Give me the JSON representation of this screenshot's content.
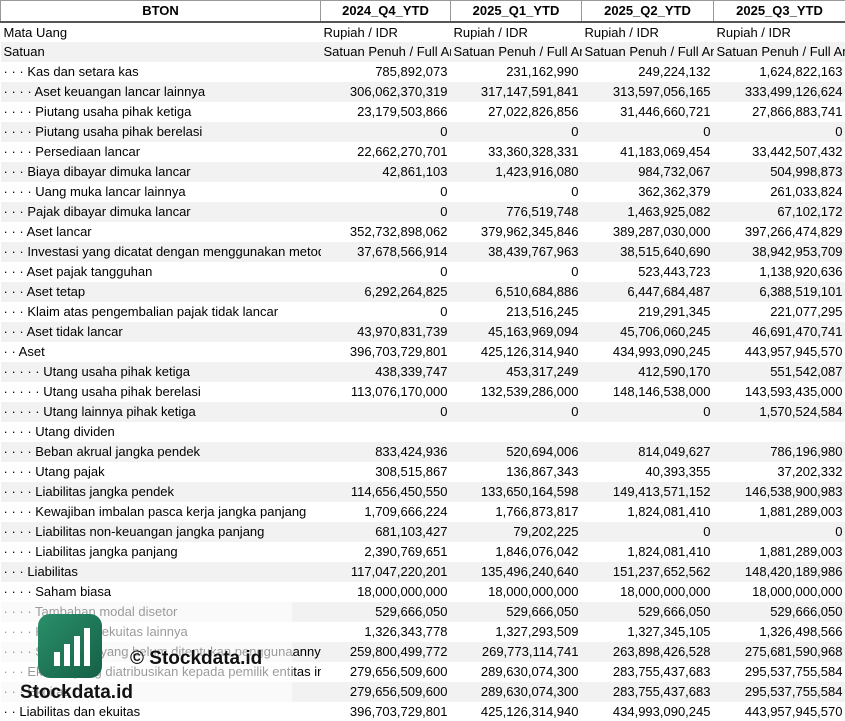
{
  "table": {
    "header": [
      "BTON",
      "2024_Q4_YTD",
      "2025_Q1_YTD",
      "2025_Q2_YTD",
      "2025_Q3_YTD"
    ],
    "rows": [
      [
        "Mata Uang",
        "Rupiah / IDR",
        "Rupiah / IDR",
        "Rupiah / IDR",
        "Rupiah / IDR"
      ],
      [
        "Satuan",
        "Satuan Penuh / Full Amount",
        "Satuan Penuh / Full Amount",
        "Satuan Penuh / Full Amount",
        "Satuan Penuh / Full Amount"
      ],
      [
        "· · · Kas dan setara kas",
        "785,892,073",
        "231,162,990",
        "249,224,132",
        "1,624,822,163"
      ],
      [
        "· · · · Aset keuangan lancar lainnya",
        "306,062,370,319",
        "317,147,591,841",
        "313,597,056,165",
        "333,499,126,624"
      ],
      [
        "· · · · Piutang usaha pihak ketiga",
        "23,179,503,866",
        "27,022,826,856",
        "31,446,660,721",
        "27,866,883,741"
      ],
      [
        "· · · · Piutang usaha pihak berelasi",
        "0",
        "0",
        "0",
        "0"
      ],
      [
        "· · · · Persediaan lancar",
        "22,662,270,701",
        "33,360,328,331",
        "41,183,069,454",
        "33,442,507,432"
      ],
      [
        "· · · Biaya dibayar dimuka lancar",
        "42,861,103",
        "1,423,916,080",
        "984,732,067",
        "504,998,873"
      ],
      [
        "· · · · Uang muka lancar lainnya",
        "0",
        "0",
        "362,362,379",
        "261,033,824"
      ],
      [
        "· · · Pajak dibayar dimuka lancar",
        "0",
        "776,519,748",
        "1,463,925,082",
        "67,102,172"
      ],
      [
        "· · · Aset lancar",
        "352,732,898,062",
        "379,962,345,846",
        "389,287,030,000",
        "397,266,474,829"
      ],
      [
        "· · · Investasi yang dicatat dengan menggunakan metode ekuitas",
        "37,678,566,914",
        "38,439,767,963",
        "38,515,640,690",
        "38,942,953,709"
      ],
      [
        "· · · Aset pajak tangguhan",
        "0",
        "0",
        "523,443,723",
        "1,138,920,636"
      ],
      [
        "· · · Aset tetap",
        "6,292,264,825",
        "6,510,684,886",
        "6,447,684,487",
        "6,388,519,101"
      ],
      [
        "· · · Klaim atas pengembalian pajak tidak lancar",
        "0",
        "213,516,245",
        "219,291,345",
        "221,077,295"
      ],
      [
        "· · · Aset tidak lancar",
        "43,970,831,739",
        "45,163,969,094",
        "45,706,060,245",
        "46,691,470,741"
      ],
      [
        "· · Aset",
        "396,703,729,801",
        "425,126,314,940",
        "434,993,090,245",
        "443,957,945,570"
      ],
      [
        "· · · · · Utang usaha pihak ketiga",
        "438,339,747",
        "453,317,249",
        "412,590,170",
        "551,542,087"
      ],
      [
        "· · · · · Utang usaha pihak berelasi",
        "113,076,170,000",
        "132,539,286,000",
        "148,146,538,000",
        "143,593,435,000"
      ],
      [
        "· · · · · Utang lainnya pihak ketiga",
        "0",
        "0",
        "0",
        "1,570,524,584"
      ],
      [
        "· · · · Utang dividen"
      ],
      [
        "· · · · Beban akrual jangka pendek",
        "833,424,936",
        "520,694,006",
        "814,049,627",
        "786,196,980"
      ],
      [
        "· · · · Utang pajak",
        "308,515,867",
        "136,867,343",
        "40,393,355",
        "37,202,332"
      ],
      [
        "· · · · Liabilitas jangka pendek",
        "114,656,450,550",
        "133,650,164,598",
        "149,413,571,152",
        "146,538,900,983"
      ],
      [
        "· · · · Kewajiban imbalan pasca kerja jangka panjang",
        "1,709,666,224",
        "1,766,873,817",
        "1,824,081,410",
        "1,881,289,003"
      ],
      [
        "· · · · Liabilitas non-keuangan jangka panjang",
        "681,103,427",
        "79,202,225",
        "0",
        "0"
      ],
      [
        "· · · · Liabilitas jangka panjang",
        "2,390,769,651",
        "1,846,076,042",
        "1,824,081,410",
        "1,881,289,003"
      ],
      [
        "· · · Liabilitas",
        "117,047,220,201",
        "135,496,240,640",
        "151,237,652,562",
        "148,420,189,986"
      ],
      [
        "· · · · Saham biasa",
        "18,000,000,000",
        "18,000,000,000",
        "18,000,000,000",
        "18,000,000,000"
      ],
      [
        "· · · · Tambahan modal disetor",
        "529,666,050",
        "529,666,050",
        "529,666,050",
        "529,666,050"
      ],
      [
        "· · · · Komponen ekuitas lainnya",
        "1,326,343,778",
        "1,327,293,509",
        "1,327,345,105",
        "1,326,498,566"
      ],
      [
        "· · · · Saldo laba yang belum ditentukan penggunaannya",
        "259,800,499,772",
        "269,773,114,741",
        "263,898,426,528",
        "275,681,590,968"
      ],
      [
        "· · · Ekuitas yang diatribusikan kepada pemilik entitas induk",
        "279,656,509,600",
        "289,630,074,300",
        "283,755,437,683",
        "295,537,755,584"
      ],
      [
        "· · · Ekuitas",
        "279,656,509,600",
        "289,630,074,300",
        "283,755,437,683",
        "295,537,755,584"
      ],
      [
        "· · Liabilitas dan ekuitas",
        "396,703,729,801",
        "425,126,314,940",
        "434,993,090,245",
        "443,957,945,570"
      ]
    ]
  },
  "watermark": {
    "center": "© Stockdata.id",
    "logo": "Stockdata.id"
  }
}
